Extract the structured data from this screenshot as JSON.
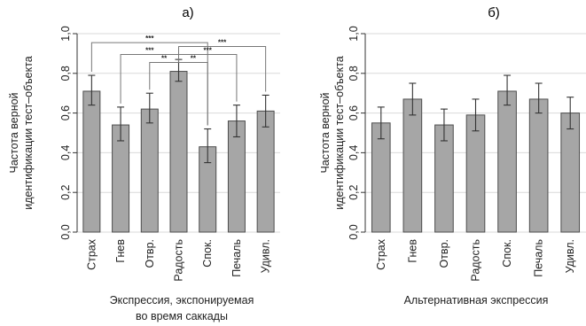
{
  "chart_data": [
    {
      "type": "bar",
      "title": "а)",
      "ylabel_lines": [
        "Частота верной",
        "идентификации тест–объекта"
      ],
      "xlabel_lines": [
        "Экспрессия, экспонируемая",
        "во время саккады"
      ],
      "ylim": [
        0,
        1
      ],
      "y_ticks": [
        "0,0",
        "0,2",
        "0,4",
        "0,6",
        "0,8",
        "1,0"
      ],
      "categories": [
        "Страх",
        "Гнев",
        "Отвр.",
        "Радость",
        "Спок.",
        "Печаль",
        "Удивл."
      ],
      "values": [
        0.71,
        0.54,
        0.62,
        0.81,
        0.43,
        0.56,
        0.61
      ],
      "error_low": [
        0.64,
        0.46,
        0.55,
        0.76,
        0.35,
        0.48,
        0.53
      ],
      "error_high": [
        0.79,
        0.63,
        0.7,
        0.87,
        0.52,
        0.64,
        0.69
      ],
      "grid": true,
      "significance": [
        {
          "from": 0,
          "to": 4,
          "level": 0.955,
          "label": "***"
        },
        {
          "from": 1,
          "to": 3,
          "level": 0.895,
          "label": "***"
        },
        {
          "from": 2,
          "to": 3,
          "level": 0.855,
          "label": "**"
        },
        {
          "from": 3,
          "to": 6,
          "level": 0.935,
          "label": "***"
        },
        {
          "from": 3,
          "to": 5,
          "level": 0.895,
          "label": "***"
        },
        {
          "from": 3,
          "to": 4,
          "level": 0.855,
          "label": "**"
        }
      ]
    },
    {
      "type": "bar",
      "title": "б)",
      "ylabel_lines": [
        "Частота верной",
        "идентификации тест–объекта"
      ],
      "xlabel_lines": [
        "Альтернативная экспрессия"
      ],
      "ylim": [
        0,
        1
      ],
      "y_ticks": [
        "0,0",
        "0,2",
        "0,4",
        "0,6",
        "0,8",
        "1,0"
      ],
      "categories": [
        "Страх",
        "Гнев",
        "Отвр.",
        "Радость",
        "Спок.",
        "Печаль",
        "Удивл."
      ],
      "values": [
        0.55,
        0.67,
        0.54,
        0.59,
        0.71,
        0.67,
        0.6
      ],
      "error_low": [
        0.47,
        0.59,
        0.46,
        0.51,
        0.64,
        0.6,
        0.52
      ],
      "error_high": [
        0.63,
        0.75,
        0.62,
        0.67,
        0.79,
        0.75,
        0.68
      ],
      "grid": true,
      "significance": []
    }
  ]
}
